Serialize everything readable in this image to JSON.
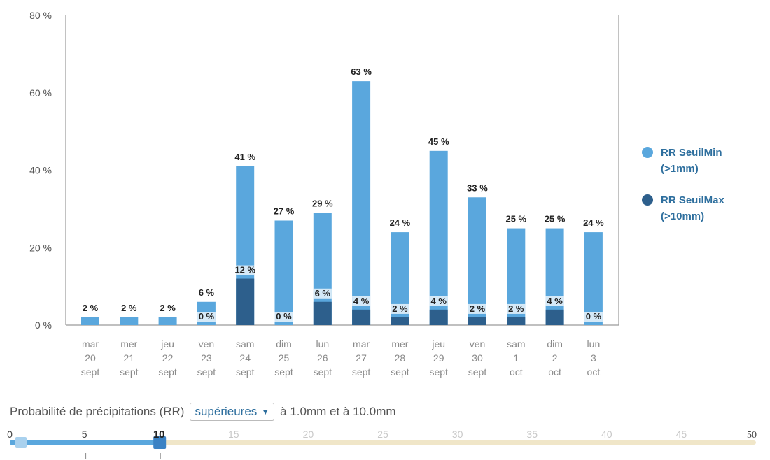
{
  "chart_data": {
    "type": "bar",
    "categories": [
      [
        "mar",
        "20",
        "sept"
      ],
      [
        "mer",
        "21",
        "sept"
      ],
      [
        "jeu",
        "22",
        "sept"
      ],
      [
        "ven",
        "23",
        "sept"
      ],
      [
        "sam",
        "24",
        "sept"
      ],
      [
        "dim",
        "25",
        "sept"
      ],
      [
        "lun",
        "26",
        "sept"
      ],
      [
        "mar",
        "27",
        "sept"
      ],
      [
        "mer",
        "28",
        "sept"
      ],
      [
        "jeu",
        "29",
        "sept"
      ],
      [
        "ven",
        "30",
        "sept"
      ],
      [
        "sam",
        "1",
        "oct"
      ],
      [
        "dim",
        "2",
        "oct"
      ],
      [
        "lun",
        "3",
        "oct"
      ]
    ],
    "series": [
      {
        "name": "RR SeuilMin",
        "sub": "(>1mm)",
        "color": "#5aa7dd",
        "values": [
          2,
          2,
          2,
          6,
          41,
          27,
          29,
          63,
          24,
          45,
          33,
          25,
          25,
          24
        ]
      },
      {
        "name": "RR SeuilMax",
        "sub": "(>10mm)",
        "color": "#2d5f8c",
        "values": [
          null,
          null,
          null,
          0,
          12,
          0,
          6,
          4,
          2,
          4,
          2,
          2,
          4,
          0
        ]
      }
    ],
    "yticks": [
      "0 %",
      "20 %",
      "40 %",
      "60 %",
      "80 %"
    ],
    "ylim": [
      0,
      80
    ],
    "legend_position": "right"
  },
  "controls": {
    "label_before": "Probabilité de précipitations (RR)",
    "select_value": "supérieures",
    "label_after": "à 1.0mm et à 10.0mm"
  },
  "slider": {
    "ticks": [
      "0",
      "5",
      "10",
      "15",
      "20",
      "25",
      "30",
      "35",
      "40",
      "45",
      "50"
    ],
    "min": 0,
    "max": 50,
    "value": 10,
    "colors": {
      "active": "#5aa7dd",
      "handle": "#3b82c4",
      "track": "#f0e6c8"
    }
  }
}
